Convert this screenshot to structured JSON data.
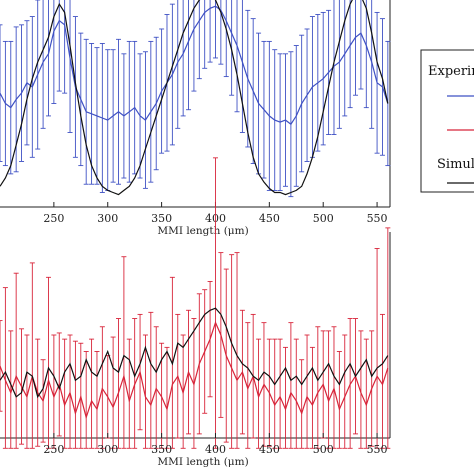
{
  "colors": {
    "experimental_top": "#3f51c4",
    "experimental_bottom": "#d8253a",
    "simulation": "#111111",
    "axis": "#222222"
  },
  "legend": {
    "header_experimental": "Experir",
    "header_simulation": "Simul",
    "placement": "right, clipped by image edge"
  },
  "chart_data": [
    {
      "type": "line",
      "xlabel": "MMI length (μm)",
      "xlim": [
        200,
        562
      ],
      "xticks": [
        250,
        300,
        350,
        400,
        450,
        500,
        550
      ],
      "ylim": [
        0,
        1
      ],
      "grid": false,
      "x": [
        200,
        205,
        210,
        215,
        220,
        225,
        230,
        235,
        240,
        245,
        250,
        255,
        260,
        265,
        270,
        275,
        280,
        285,
        290,
        295,
        300,
        305,
        310,
        315,
        320,
        325,
        330,
        335,
        340,
        345,
        350,
        355,
        360,
        365,
        370,
        375,
        380,
        385,
        390,
        395,
        400,
        405,
        410,
        415,
        420,
        425,
        430,
        435,
        440,
        445,
        450,
        455,
        460,
        465,
        470,
        475,
        480,
        485,
        490,
        495,
        500,
        505,
        510,
        515,
        520,
        525,
        530,
        535,
        540,
        545,
        550,
        555,
        560
      ],
      "series": [
        {
          "role": "experimental",
          "color": "#3f51c4",
          "values": [
            0.55,
            0.5,
            0.48,
            0.52,
            0.55,
            0.6,
            0.58,
            0.64,
            0.7,
            0.74,
            0.85,
            0.9,
            0.88,
            0.72,
            0.58,
            0.52,
            0.46,
            0.45,
            0.44,
            0.43,
            0.42,
            0.44,
            0.46,
            0.44,
            0.46,
            0.48,
            0.44,
            0.42,
            0.46,
            0.5,
            0.56,
            0.6,
            0.64,
            0.7,
            0.74,
            0.8,
            0.86,
            0.9,
            0.94,
            0.96,
            0.97,
            0.95,
            0.9,
            0.84,
            0.78,
            0.7,
            0.62,
            0.56,
            0.5,
            0.47,
            0.44,
            0.42,
            0.41,
            0.42,
            0.4,
            0.44,
            0.5,
            0.54,
            0.58,
            0.6,
            0.62,
            0.65,
            0.68,
            0.7,
            0.74,
            0.78,
            0.82,
            0.84,
            0.78,
            0.7,
            0.6,
            0.58,
            0.5
          ],
          "errors": [
            0.33,
            0.3,
            0.32,
            0.35,
            0.33,
            0.3,
            0.34,
            0.36,
            0.32,
            0.3,
            0.35,
            0.34,
            0.33,
            0.36,
            0.34,
            0.32,
            0.35,
            0.34,
            0.33,
            0.36,
            0.34,
            0.32,
            0.35,
            0.3,
            0.34,
            0.32,
            0.3,
            0.33,
            0.34,
            0.32,
            0.3,
            0.33,
            0.34,
            0.32,
            0.3,
            0.33,
            0.3,
            0.28,
            0.27,
            0.26,
            0.25,
            0.26,
            0.27,
            0.3,
            0.32,
            0.34,
            0.33,
            0.35,
            0.34,
            0.33,
            0.36,
            0.34,
            0.33,
            0.32,
            0.35,
            0.34,
            0.33,
            0.32,
            0.34,
            0.33,
            0.32,
            0.3,
            0.33,
            0.32,
            0.3,
            0.3,
            0.28,
            0.27,
            0.3,
            0.32,
            0.34,
            0.33,
            0.3
          ]
        },
        {
          "role": "simulation",
          "color": "#111111",
          "values": [
            0.1,
            0.14,
            0.2,
            0.3,
            0.4,
            0.52,
            0.62,
            0.7,
            0.76,
            0.82,
            0.92,
            0.98,
            0.94,
            0.78,
            0.6,
            0.44,
            0.3,
            0.2,
            0.14,
            0.1,
            0.08,
            0.07,
            0.06,
            0.08,
            0.1,
            0.14,
            0.2,
            0.28,
            0.36,
            0.44,
            0.52,
            0.6,
            0.68,
            0.76,
            0.84,
            0.9,
            0.96,
            1.0,
            1.02,
            1.03,
            1.0,
            0.94,
            0.86,
            0.76,
            0.64,
            0.5,
            0.36,
            0.24,
            0.16,
            0.12,
            0.09,
            0.07,
            0.07,
            0.06,
            0.07,
            0.08,
            0.1,
            0.16,
            0.24,
            0.34,
            0.46,
            0.58,
            0.7,
            0.8,
            0.9,
            0.98,
            1.03,
            1.02,
            0.96,
            0.84,
            0.7,
            0.62,
            0.5
          ]
        }
      ]
    },
    {
      "type": "line",
      "xlabel": "MMI length (μm)",
      "xlim": [
        200,
        562
      ],
      "xticks": [
        250,
        300,
        350,
        400,
        450,
        500,
        550
      ],
      "ylim": [
        0,
        1
      ],
      "grid": false,
      "x": [
        200,
        205,
        210,
        215,
        220,
        225,
        230,
        235,
        240,
        245,
        250,
        255,
        260,
        265,
        270,
        275,
        280,
        285,
        290,
        295,
        300,
        305,
        310,
        315,
        320,
        325,
        330,
        335,
        340,
        345,
        350,
        355,
        360,
        365,
        370,
        375,
        380,
        385,
        390,
        395,
        400,
        405,
        410,
        415,
        420,
        425,
        430,
        435,
        440,
        445,
        450,
        455,
        460,
        465,
        470,
        475,
        480,
        485,
        490,
        495,
        500,
        505,
        510,
        515,
        520,
        525,
        530,
        535,
        540,
        545,
        550,
        555,
        560
      ],
      "series": [
        {
          "role": "experimental",
          "color": "#d8253a",
          "values": [
            0.35,
            0.28,
            0.22,
            0.3,
            0.25,
            0.2,
            0.3,
            0.22,
            0.18,
            0.28,
            0.2,
            0.26,
            0.16,
            0.22,
            0.12,
            0.2,
            0.1,
            0.18,
            0.14,
            0.24,
            0.2,
            0.15,
            0.22,
            0.3,
            0.18,
            0.26,
            0.32,
            0.2,
            0.16,
            0.24,
            0.2,
            0.14,
            0.26,
            0.3,
            0.22,
            0.32,
            0.26,
            0.36,
            0.42,
            0.48,
            0.56,
            0.5,
            0.4,
            0.34,
            0.28,
            0.32,
            0.24,
            0.3,
            0.2,
            0.26,
            0.22,
            0.16,
            0.2,
            0.14,
            0.22,
            0.18,
            0.12,
            0.2,
            0.16,
            0.22,
            0.26,
            0.18,
            0.24,
            0.14,
            0.2,
            0.26,
            0.3,
            0.22,
            0.16,
            0.24,
            0.3,
            0.26,
            0.34
          ],
          "errors": [
            0.22,
            0.45,
            0.3,
            0.5,
            0.28,
            0.3,
            0.55,
            0.26,
            0.2,
            0.5,
            0.3,
            0.25,
            0.32,
            0.28,
            0.35,
            0.26,
            0.32,
            0.3,
            0.28,
            0.3,
            0.2,
            0.34,
            0.36,
            0.58,
            0.3,
            0.32,
            0.28,
            0.3,
            0.45,
            0.3,
            0.26,
            0.3,
            0.52,
            0.3,
            0.28,
            0.3,
            0.32,
            0.34,
            0.3,
            0.28,
            0.8,
            0.4,
            0.42,
            0.55,
            0.62,
            0.3,
            0.32,
            0.3,
            0.28,
            0.3,
            0.26,
            0.32,
            0.28,
            0.3,
            0.34,
            0.3,
            0.26,
            0.3,
            0.28,
            0.32,
            0.26,
            0.34,
            0.3,
            0.28,
            0.3,
            0.32,
            0.28,
            0.3,
            0.32,
            0.28,
            0.62,
            0.34,
            0.68
          ]
        },
        {
          "role": "simulation",
          "color": "#111111",
          "values": [
            0.28,
            0.32,
            0.26,
            0.2,
            0.22,
            0.32,
            0.3,
            0.2,
            0.24,
            0.34,
            0.3,
            0.24,
            0.32,
            0.36,
            0.28,
            0.3,
            0.38,
            0.32,
            0.3,
            0.36,
            0.42,
            0.34,
            0.32,
            0.4,
            0.38,
            0.3,
            0.36,
            0.44,
            0.36,
            0.32,
            0.38,
            0.42,
            0.36,
            0.46,
            0.44,
            0.48,
            0.52,
            0.56,
            0.6,
            0.62,
            0.63,
            0.6,
            0.54,
            0.46,
            0.4,
            0.36,
            0.34,
            0.3,
            0.28,
            0.32,
            0.3,
            0.26,
            0.3,
            0.34,
            0.28,
            0.3,
            0.26,
            0.3,
            0.34,
            0.28,
            0.32,
            0.36,
            0.3,
            0.26,
            0.32,
            0.36,
            0.3,
            0.34,
            0.38,
            0.3,
            0.34,
            0.36,
            0.4
          ]
        }
      ]
    }
  ]
}
